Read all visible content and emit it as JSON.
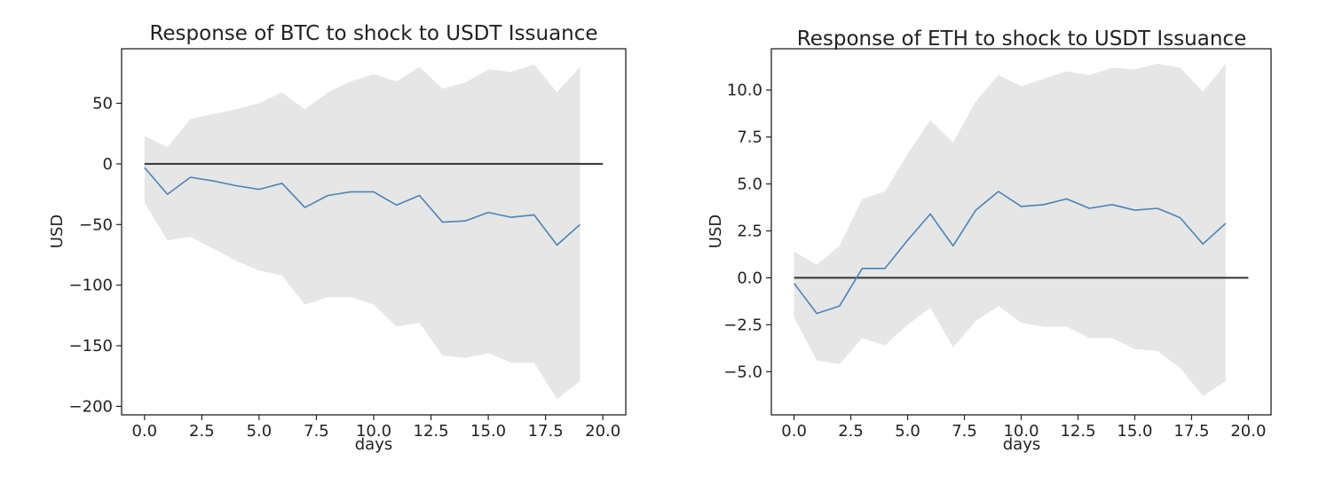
{
  "chart_data": [
    {
      "type": "line",
      "title": "Response of BTC to shock to USDT Issuance",
      "xlabel": "days",
      "ylabel": "USD",
      "xlim": [
        -1,
        21
      ],
      "ylim": [
        -207,
        95
      ],
      "xticks": [
        0.0,
        2.5,
        5.0,
        7.5,
        10.0,
        12.5,
        15.0,
        17.5,
        20.0
      ],
      "xtick_labels": [
        "0.0",
        "2.5",
        "5.0",
        "7.5",
        "10.0",
        "12.5",
        "15.0",
        "17.5",
        "20.0"
      ],
      "yticks": [
        50,
        0,
        -50,
        -100,
        -150,
        -200
      ],
      "ytick_labels": [
        "50",
        "0",
        "−50",
        "−100",
        "−150",
        "−200"
      ],
      "grid": false,
      "x": [
        0,
        1,
        2,
        3,
        4,
        5,
        6,
        7,
        8,
        9,
        10,
        11,
        12,
        13,
        14,
        15,
        16,
        17,
        18,
        19
      ],
      "series": [
        {
          "values": [
            -3,
            -25,
            -11,
            -14,
            -18,
            -21,
            -16,
            -36,
            -26,
            -23,
            -23,
            -34,
            -26,
            -48,
            -47,
            -40,
            -44,
            -42,
            -67,
            -50
          ]
        }
      ],
      "band": {
        "upper": [
          23,
          14,
          37,
          41,
          45,
          50,
          59,
          45,
          59,
          68,
          74,
          68,
          80,
          62,
          67,
          78,
          76,
          82,
          59,
          80
        ],
        "lower": [
          -32,
          -63,
          -60,
          -70,
          -80,
          -88,
          -92,
          -116,
          -110,
          -110,
          -116,
          -134,
          -131,
          -158,
          -160,
          -156,
          -164,
          -164,
          -194,
          -179
        ]
      },
      "reference_line": {
        "x": [
          0,
          20
        ],
        "y": 0
      },
      "colors": {
        "line": "#4a83b8",
        "band": "#e6e6e6",
        "reference": "#333333"
      }
    },
    {
      "type": "line",
      "title": "Response of ETH to shock to USDT Issuance",
      "xlabel": "days",
      "ylabel": "USD",
      "xlim": [
        -1,
        21
      ],
      "ylim": [
        -7.3,
        12.2
      ],
      "xticks": [
        0.0,
        2.5,
        5.0,
        7.5,
        10.0,
        12.5,
        15.0,
        17.5,
        20.0
      ],
      "xtick_labels": [
        "0.0",
        "2.5",
        "5.0",
        "7.5",
        "10.0",
        "12.5",
        "15.0",
        "17.5",
        "20.0"
      ],
      "yticks": [
        10.0,
        7.5,
        5.0,
        2.5,
        0.0,
        -2.5,
        -5.0
      ],
      "ytick_labels": [
        "10.0",
        "7.5",
        "5.0",
        "2.5",
        "0.0",
        "−2.5",
        "−5.0"
      ],
      "grid": false,
      "x": [
        0,
        1,
        2,
        3,
        4,
        5,
        6,
        7,
        8,
        9,
        10,
        11,
        12,
        13,
        14,
        15,
        16,
        17,
        18,
        19
      ],
      "series": [
        {
          "values": [
            -0.3,
            -1.9,
            -1.5,
            0.5,
            0.5,
            2.0,
            3.4,
            1.7,
            3.6,
            4.6,
            3.8,
            3.9,
            4.2,
            3.7,
            3.9,
            3.6,
            3.7,
            3.2,
            1.8,
            2.9
          ]
        }
      ],
      "band": {
        "upper": [
          1.4,
          0.7,
          1.7,
          4.2,
          4.6,
          6.6,
          8.4,
          7.2,
          9.4,
          10.8,
          10.2,
          10.6,
          11.0,
          10.8,
          11.2,
          11.1,
          11.4,
          11.2,
          9.9,
          11.4
        ],
        "lower": [
          -2.1,
          -4.4,
          -4.6,
          -3.2,
          -3.6,
          -2.5,
          -1.6,
          -3.7,
          -2.3,
          -1.5,
          -2.4,
          -2.6,
          -2.6,
          -3.2,
          -3.2,
          -3.8,
          -3.9,
          -4.8,
          -6.3,
          -5.5
        ]
      },
      "reference_line": {
        "x": [
          0,
          20
        ],
        "y": 0
      },
      "colors": {
        "line": "#4a83b8",
        "band": "#e6e6e6",
        "reference": "#333333"
      }
    }
  ]
}
